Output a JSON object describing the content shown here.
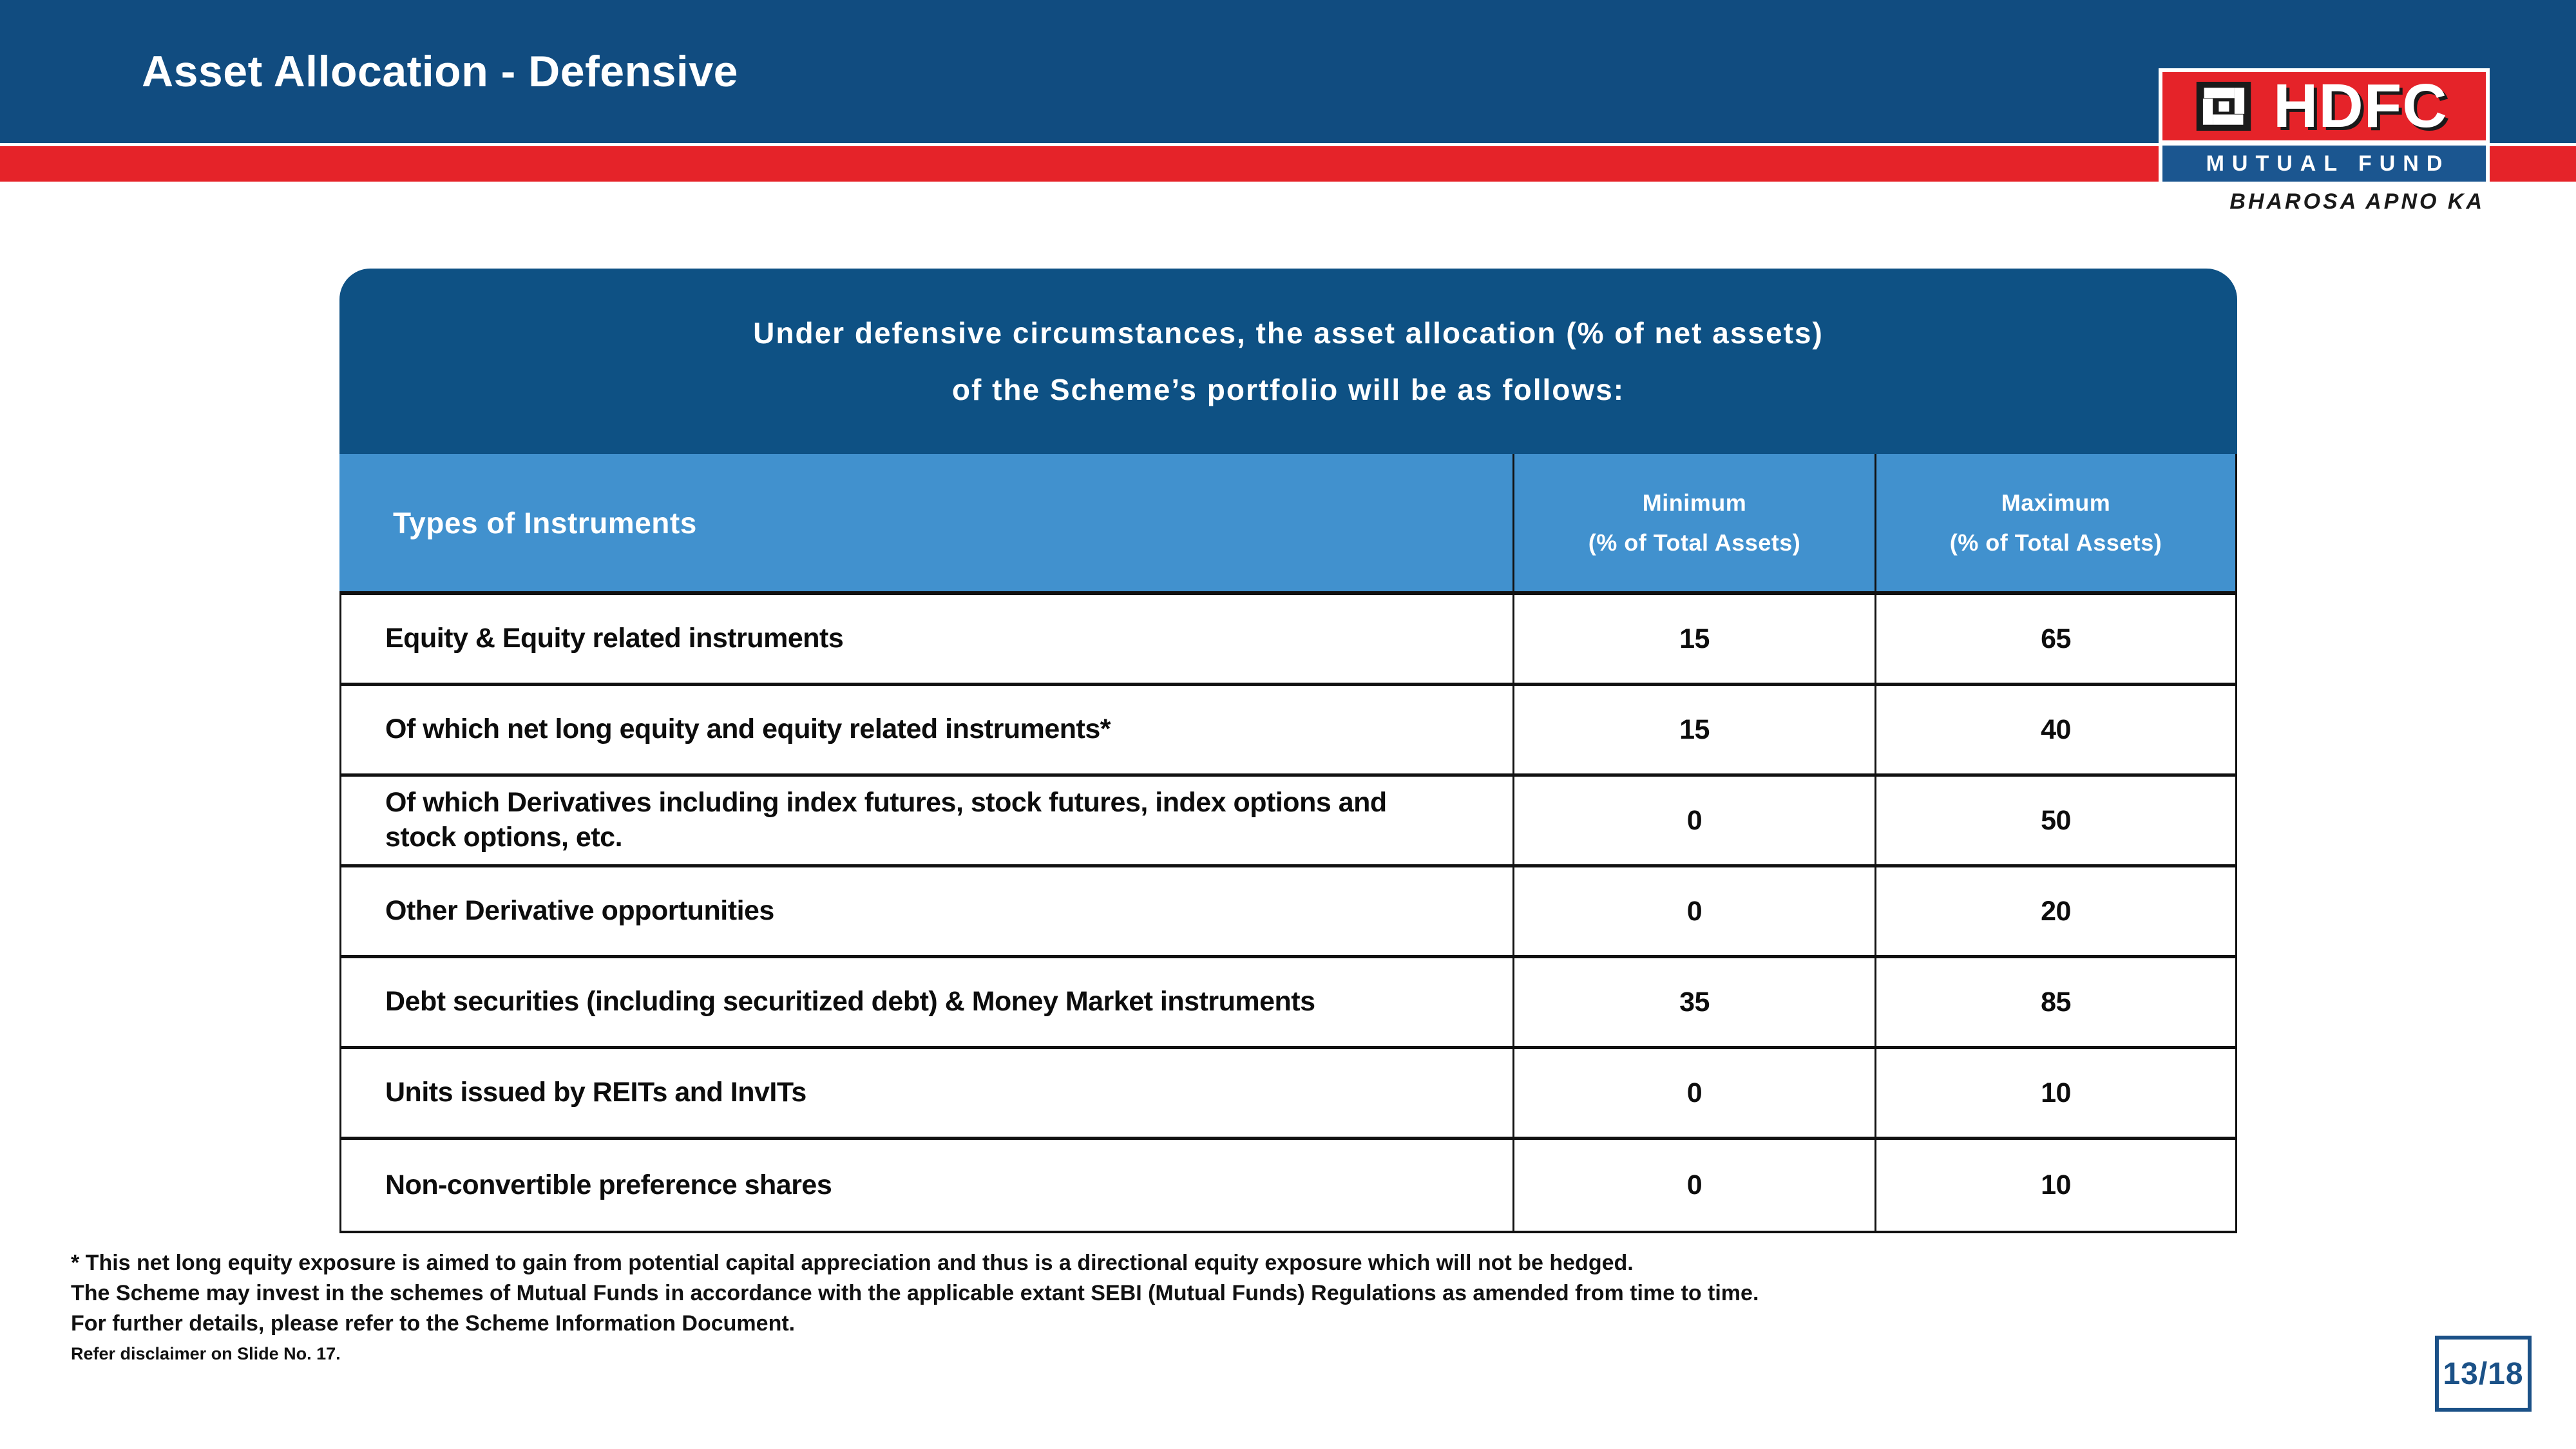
{
  "header": {
    "title": "Asset Allocation - Defensive"
  },
  "logo": {
    "brand": "HDFC",
    "subtitle": "MUTUAL FUND",
    "tagline": "BHAROSA APNO KA"
  },
  "intro": {
    "line1": "Under defensive circumstances, the asset allocation (% of net assets)",
    "line2": "of the Scheme’s portfolio will be as follows:"
  },
  "table": {
    "columns": [
      "Types of Instruments",
      "Minimum",
      "Maximum"
    ],
    "col_subtitle": "(% of Total Assets)",
    "rows": [
      {
        "label": "Equity & Equity related instruments",
        "min": "15",
        "max": "65"
      },
      {
        "label": "Of which net long equity and equity related instruments*",
        "min": "15",
        "max": "40"
      },
      {
        "label": "Of which Derivatives including index futures, stock futures, index options and stock options, etc.",
        "min": "0",
        "max": "50"
      },
      {
        "label": "Other Derivative opportunities",
        "min": "0",
        "max": "20"
      },
      {
        "label": "Debt securities (including securitized debt) & Money Market instruments",
        "min": "35",
        "max": "85"
      },
      {
        "label": "Units issued by REITs and InvITs",
        "min": "0",
        "max": "10"
      },
      {
        "label": "Non-convertible preference shares",
        "min": "0",
        "max": "10"
      }
    ]
  },
  "footer": {
    "lines": [
      "* This net long equity exposure is aimed to gain from potential capital appreciation and thus is a directional equity exposure which will not be hedged.",
      "The Scheme may invest in the schemes of Mutual Funds in accordance with the applicable extant SEBI (Mutual Funds) Regulations as amended from time to time.",
      "For further details, please refer to the Scheme Information Document."
    ],
    "disclaimer": "Refer disclaimer on Slide No. 17."
  },
  "page_indicator": "13/18",
  "colors": {
    "header_blue": "#114C80",
    "accent_red": "#E52329",
    "intro_blue": "#0E5184",
    "table_header_blue": "#4191CE",
    "logo_band_blue": "#1B5690",
    "page_number_blue": "#1B5187"
  }
}
